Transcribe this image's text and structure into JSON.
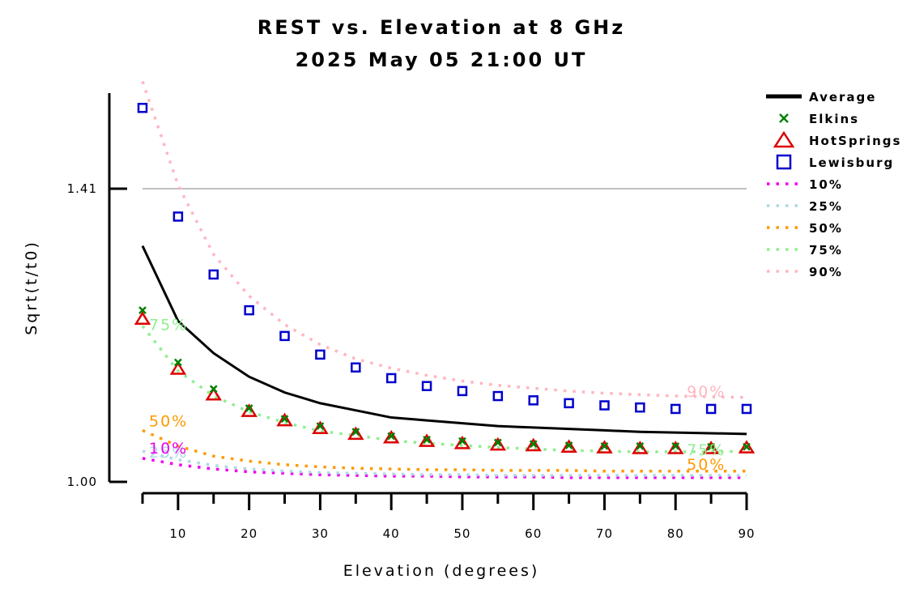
{
  "chart_data": {
    "type": "line",
    "title": "REST vs. Elevation at 8 GHz",
    "subtitle": "2025 May 05 21:00 UT",
    "xlabel": "Elevation (degrees)",
    "ylabel": "Sqrt(t/t0)",
    "xlim": [
      5,
      90
    ],
    "ylim": [
      1.0,
      1.54
    ],
    "xticks": [
      10,
      20,
      30,
      40,
      50,
      60,
      70,
      80,
      90
    ],
    "xtick_labels": [
      "10",
      "20",
      "30",
      "40",
      "50",
      "60",
      "70",
      "80",
      "90"
    ],
    "yticks": [
      1.0,
      1.41
    ],
    "ytick_labels": [
      "1.00",
      "1.41"
    ],
    "reference_line": {
      "y": 1.41,
      "color": "#c0c0c0"
    },
    "legend_position": "right",
    "x": [
      5,
      10,
      15,
      20,
      25,
      30,
      35,
      40,
      45,
      50,
      55,
      60,
      65,
      70,
      75,
      80,
      85,
      90
    ],
    "series": [
      {
        "name": "Average",
        "style": "line",
        "color": "#000000",
        "values": [
          1.33,
          1.225,
          1.18,
          1.147,
          1.125,
          1.11,
          1.1,
          1.09,
          1.086,
          1.082,
          1.078,
          1.076,
          1.074,
          1.072,
          1.07,
          1.069,
          1.068,
          1.067
        ]
      },
      {
        "name": "Elkins",
        "style": "x",
        "color": "#008000",
        "values": [
          1.24,
          1.167,
          1.13,
          1.103,
          1.088,
          1.078,
          1.07,
          1.064,
          1.059,
          1.057,
          1.055,
          1.053,
          1.051,
          1.05,
          1.05,
          1.05,
          1.049,
          1.049
        ]
      },
      {
        "name": "HotSprings",
        "style": "triangle",
        "color": "#dd0000",
        "values": [
          1.228,
          1.158,
          1.122,
          1.099,
          1.086,
          1.075,
          1.067,
          1.062,
          1.057,
          1.054,
          1.052,
          1.051,
          1.049,
          1.048,
          1.047,
          1.047,
          1.047,
          1.048
        ]
      },
      {
        "name": "Lewisburg",
        "style": "square",
        "color": "#0000cc",
        "values": [
          1.523,
          1.371,
          1.29,
          1.24,
          1.204,
          1.178,
          1.16,
          1.145,
          1.134,
          1.127,
          1.12,
          1.114,
          1.11,
          1.107,
          1.104,
          1.102,
          1.102,
          1.102
        ]
      },
      {
        "name": "10%",
        "style": "dotted",
        "color": "#ee00ee",
        "values": [
          1.033,
          1.024,
          1.018,
          1.014,
          1.012,
          1.01,
          1.009,
          1.008,
          1.008,
          1.007,
          1.007,
          1.007,
          1.006,
          1.006,
          1.006,
          1.006,
          1.006,
          1.006
        ]
      },
      {
        "name": "25%",
        "style": "dotted",
        "color": "#add8e6",
        "values": [
          1.043,
          1.031,
          1.023,
          1.018,
          1.015,
          1.013,
          1.012,
          1.011,
          1.01,
          1.01,
          1.009,
          1.009,
          1.009,
          1.009,
          1.009,
          1.009,
          1.009,
          1.009
        ]
      },
      {
        "name": "50%",
        "style": "dotted",
        "color": "#ff9900",
        "values": [
          1.072,
          1.05,
          1.036,
          1.029,
          1.024,
          1.021,
          1.019,
          1.018,
          1.017,
          1.017,
          1.016,
          1.016,
          1.016,
          1.015,
          1.015,
          1.015,
          1.015,
          1.015
        ]
      },
      {
        "name": "75%",
        "style": "dotted",
        "color": "#90ee90",
        "values": [
          1.218,
          1.155,
          1.12,
          1.098,
          1.083,
          1.071,
          1.065,
          1.058,
          1.054,
          1.051,
          1.048,
          1.046,
          1.044,
          1.043,
          1.042,
          1.042,
          1.042,
          1.043
        ]
      },
      {
        "name": "90%",
        "style": "dotted",
        "color": "#ffb6c1",
        "values": [
          1.56,
          1.415,
          1.318,
          1.26,
          1.22,
          1.192,
          1.172,
          1.159,
          1.149,
          1.141,
          1.135,
          1.131,
          1.127,
          1.124,
          1.122,
          1.12,
          1.119,
          1.118
        ]
      }
    ],
    "annotations": [
      {
        "text": "75%",
        "x": 5,
        "series": "75%"
      },
      {
        "text": "50%",
        "x": 5,
        "series": "50%"
      },
      {
        "text": "25%",
        "x": 5,
        "series": "25%"
      },
      {
        "text": "10%",
        "x": 5,
        "series": "10%"
      },
      {
        "text": "90%",
        "x": 85,
        "series": "90%"
      },
      {
        "text": "75%",
        "x": 85,
        "series": "75%"
      },
      {
        "text": "50%",
        "x": 85,
        "series": "50%"
      }
    ]
  }
}
